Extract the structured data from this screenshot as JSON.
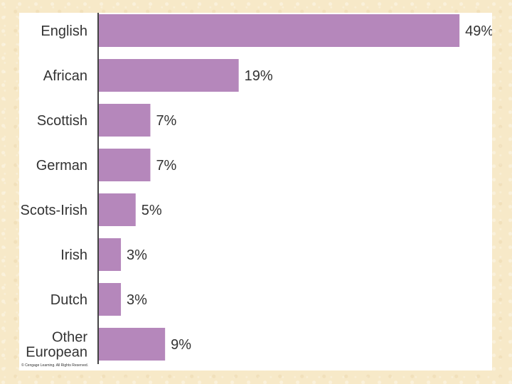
{
  "chart_data": {
    "type": "bar",
    "orientation": "horizontal",
    "categories": [
      "English",
      "African",
      "Scottish",
      "German",
      "Scots-Irish",
      "Irish",
      "Dutch",
      "Other European"
    ],
    "category_lines": [
      [
        "English"
      ],
      [
        "African"
      ],
      [
        "Scottish"
      ],
      [
        "German"
      ],
      [
        "Scots-Irish"
      ],
      [
        "Irish"
      ],
      [
        "Dutch"
      ],
      [
        "Other",
        "European"
      ]
    ],
    "values": [
      49,
      19,
      7,
      7,
      5,
      3,
      3,
      9
    ],
    "value_labels": [
      "49%",
      "19%",
      "7%",
      "7%",
      "5%",
      "3%",
      "3%",
      "9%"
    ],
    "bar_color": "#b587bb",
    "axis_color": "#444444",
    "grid": false,
    "legend": "none"
  },
  "footer": {
    "copyright": "© Cengage Learning. All Rights Reserved."
  }
}
